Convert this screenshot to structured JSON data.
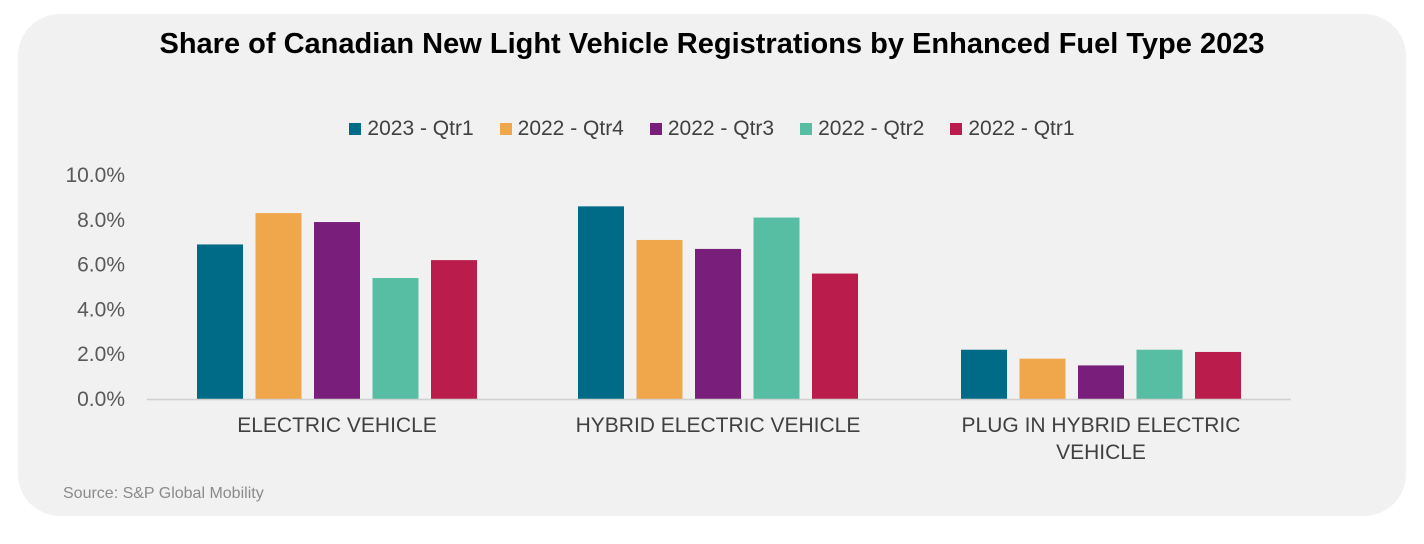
{
  "chart_data": {
    "type": "bar",
    "title": "Share of Canadian New Light Vehicle Registrations by Enhanced Fuel Type 2023",
    "categories": [
      "ELECTRIC VEHICLE",
      "HYBRID ELECTRIC VEHICLE",
      "PLUG IN HYBRID ELECTRIC VEHICLE"
    ],
    "category_lines": [
      [
        "ELECTRIC VEHICLE"
      ],
      [
        "HYBRID ELECTRIC VEHICLE"
      ],
      [
        "PLUG IN HYBRID ELECTRIC",
        "VEHICLE"
      ]
    ],
    "series": [
      {
        "name": "2023 - Qtr1",
        "color": "#006B87",
        "values": [
          6.9,
          8.6,
          2.2
        ]
      },
      {
        "name": "2022 - Qtr4",
        "color": "#F0A64B",
        "values": [
          8.3,
          7.1,
          1.8
        ]
      },
      {
        "name": "2022 - Qtr3",
        "color": "#7A1E7B",
        "values": [
          7.9,
          6.7,
          1.5
        ]
      },
      {
        "name": "2022 - Qtr2",
        "color": "#57BEA3",
        "values": [
          5.4,
          8.1,
          2.2
        ]
      },
      {
        "name": "2022 - Qtr1",
        "color": "#BA1C4B",
        "values": [
          6.2,
          5.6,
          2.1
        ]
      }
    ],
    "ylim": [
      0,
      10
    ],
    "yticks": [
      0,
      2,
      4,
      6,
      8,
      10
    ],
    "ytick_labels": [
      "0.0%",
      "2.0%",
      "4.0%",
      "6.0%",
      "8.0%",
      "10.0%"
    ],
    "xlabel": "",
    "ylabel": "",
    "grid": false,
    "legend_position": "top"
  },
  "source": "Source: S&P Global Mobility"
}
